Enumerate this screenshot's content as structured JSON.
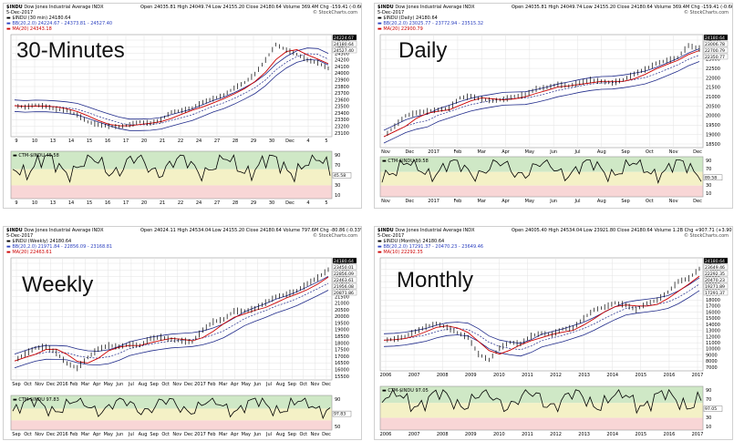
{
  "colors": {
    "price": "#000000",
    "ma": "#cc0000",
    "bb": "#1f2a8a",
    "line": "#000000",
    "green": "#cfe8c6",
    "yellow": "#f4f1c6",
    "pink": "#f8d6d6",
    "grid": "#e3e3e3"
  },
  "chart_data": [
    {
      "type": "line",
      "label": "30-Minutes",
      "header": {
        "symbol": "$INDU",
        "name": "Dow Jones Industrial Average",
        "exch": "INDX",
        "date": "5-Dec-2017",
        "line2": "$INDU (30 min) 24180.64",
        "line3": "BB(20,2.0) 24224.67 - 24373.81 - 24527.40",
        "line4": "MA(20) 24343.18"
      },
      "ohlc": {
        "open": "Open 24035.81",
        "high": "High 24049.74",
        "low": "Low 24155.20",
        "close": "Close 24180.64",
        "volume": "Volume 369.4M",
        "chg": "Chg -159.41 (-0.66%)"
      },
      "watermark": "© StockCharts.com",
      "x_ticks": [
        "9",
        "10",
        "13",
        "14",
        "15",
        "16",
        "17",
        "20",
        "21",
        "22",
        "24",
        "27",
        "28",
        "29",
        "30",
        "Dec",
        "4",
        "5"
      ],
      "y_ticks": [
        "24500",
        "24400",
        "24300",
        "24200",
        "24100",
        "24000",
        "23900",
        "23800",
        "23700",
        "23600",
        "23500",
        "23400",
        "23300",
        "23200",
        "23100"
      ],
      "last_labels": [
        "24224.67",
        "24180.64",
        "24527.40"
      ],
      "series": [
        {
          "values": [
            23650,
            23630,
            23660,
            23640,
            23600,
            23580,
            23520,
            23420,
            23380,
            23360,
            23350,
            23380,
            23420,
            23400,
            23450,
            23560,
            23580,
            23620,
            23700,
            23750,
            23800,
            23900,
            23980,
            24100,
            24300,
            24520,
            24440,
            24380,
            24300,
            24260,
            24180
          ]
        }
      ],
      "indicator": {
        "label": "CTM-$INDU 45.58",
        "ticks": [
          "90",
          "70",
          "50",
          "30",
          "10"
        ],
        "last": "45.58"
      }
    },
    {
      "type": "line",
      "label": "Daily",
      "header": {
        "symbol": "$INDU",
        "name": "Dow Jones Industrial Average",
        "exch": "INDX",
        "date": "5-Dec-2017",
        "line2": "$INDU (Daily) 24180.64",
        "line3": "BB(20,2.0) 23025.77 - 23772.94 - 23515.32",
        "line4": "MA(20) 22900.79"
      },
      "ohlc": {
        "open": "Open 24035.81",
        "high": "High 24049.74",
        "low": "Low 24155.20",
        "close": "Close 24180.64",
        "volume": "Volume 369.4M",
        "chg": "Chg -159.41 (-0.66%)"
      },
      "watermark": "© StockCharts.com",
      "x_ticks": [
        "Nov",
        "Dec",
        "2017",
        "Feb",
        "Mar",
        "Apr",
        "May",
        "Jun",
        "Jul",
        "Aug",
        "Sep",
        "Oct",
        "Nov",
        "Dec"
      ],
      "y_ticks": [
        "24000",
        "23500",
        "23000",
        "22500",
        "22000",
        "21500",
        "21000",
        "20500",
        "20000",
        "19500",
        "19000",
        "18500"
      ],
      "last_labels": [
        "24180.64",
        "23006.78",
        "22700.79",
        "22350.77"
      ],
      "series": [
        {
          "values": [
            18200,
            18900,
            19600,
            19800,
            19900,
            20000,
            20100,
            20800,
            20900,
            20700,
            20600,
            20700,
            20900,
            21000,
            21400,
            21500,
            21700,
            21600,
            21800,
            22000,
            21900,
            21800,
            22000,
            22400,
            22700,
            23100,
            23300,
            23500,
            24300,
            24100
          ]
        }
      ],
      "indicator": {
        "label": "CTM-$INDU 89.58",
        "ticks": [
          "90",
          "70",
          "50",
          "30",
          "10"
        ],
        "last": "89.58"
      }
    },
    {
      "type": "line",
      "label": "Weekly",
      "header": {
        "symbol": "$INDU",
        "name": "Dow Jones Industrial Average",
        "exch": "INDX",
        "date": "5-Dec-2017",
        "line2": "$INDU (Weekly) 24180.64",
        "line3": "BB(20,2.0) 21971.84 - 22856.09 - 23168.81",
        "line4": "MA(20) 22463.61"
      },
      "ohlc": {
        "open": "Open 24024.11",
        "high": "High 24534.04",
        "low": "Low 24155.20",
        "close": "Close 24180.64",
        "volume": "Volume 797.6M",
        "chg": "Chg -80.86 (-0.33%)"
      },
      "watermark": "© StockCharts.com",
      "x_ticks": [
        "Sep",
        "Oct",
        "Nov",
        "Dec",
        "2016",
        "Feb",
        "Mar",
        "Apr",
        "May",
        "Jun",
        "Jul",
        "Aug",
        "Sep",
        "Oct",
        "Nov",
        "Dec",
        "2017",
        "Feb",
        "Mar",
        "Apr",
        "May",
        "Jun",
        "Jul",
        "Aug",
        "Sep",
        "Oct",
        "Nov",
        "Dec"
      ],
      "y_ticks": [
        "24000",
        "23500",
        "23000",
        "22500",
        "22000",
        "21500",
        "21000",
        "20500",
        "20000",
        "19500",
        "19000",
        "18500",
        "18000",
        "17500",
        "17000",
        "16500",
        "16000",
        "15500"
      ],
      "last_labels": [
        "24180.64",
        "23450.01",
        "22856.09",
        "22463.61",
        "21956.08",
        "20871.86"
      ],
      "series": [
        {
          "values": [
            16500,
            17100,
            17600,
            17700,
            17200,
            16300,
            15900,
            16800,
            17500,
            17800,
            17700,
            17900,
            17800,
            18400,
            18500,
            18300,
            18200,
            18100,
            19100,
            19800,
            20000,
            20700,
            20700,
            20900,
            21400,
            21900,
            22100,
            22400,
            23000,
            23500,
            24180
          ]
        }
      ],
      "indicator": {
        "label": "CTM-$INDU 97.83",
        "ticks": [
          "90",
          "70",
          "50"
        ],
        "last": "97.83"
      }
    },
    {
      "type": "line",
      "label": "Monthly",
      "header": {
        "symbol": "$INDU",
        "name": "Dow Jones Industrial Average",
        "exch": "INDX",
        "date": "5-Dec-2017",
        "line2": "$INDU (Monthly) 24180.64",
        "line3": "BB(20,2.0) 17291.37 - 20470.23 - 23649.46",
        "line4": "MA(10) 22292.35"
      },
      "ohlc": {
        "open": "Open 24005.40",
        "high": "High 24534.04",
        "low": "Low 23921.80",
        "close": "Close 24180.64",
        "volume": "Volume 1.2B",
        "chg": "Chg +907.71 (+3.90%)"
      },
      "watermark": "© StockCharts.com",
      "x_ticks": [
        "2006",
        "2007",
        "2008",
        "2009",
        "2010",
        "2011",
        "2012",
        "2013",
        "2014",
        "2015",
        "2016",
        "2017"
      ],
      "y_ticks": [
        "24000",
        "23000",
        "22000",
        "21000",
        "20000",
        "19000",
        "18000",
        "17000",
        "16000",
        "15000",
        "14000",
        "13000",
        "12000",
        "11000",
        "10000",
        "9000",
        "8000",
        "7000"
      ],
      "last_labels": [
        "24180.64",
        "23649.46",
        "22292.35",
        "20470.23",
        "19271.89",
        "17291.37"
      ],
      "series": [
        {
          "values": [
            10800,
            11000,
            11500,
            12400,
            13300,
            13900,
            13200,
            12200,
            11300,
            8200,
            7100,
            9300,
            10400,
            10100,
            11600,
            12100,
            11900,
            12900,
            13100,
            14900,
            16500,
            17000,
            17800,
            17400,
            16500,
            17700,
            18300,
            19800,
            21800,
            22400,
            24180
          ]
        }
      ],
      "indicator": {
        "label": "CTM-$INDU 97.05",
        "ticks": [
          "90",
          "70",
          "50",
          "30",
          "10"
        ],
        "last": "97.05"
      }
    }
  ]
}
